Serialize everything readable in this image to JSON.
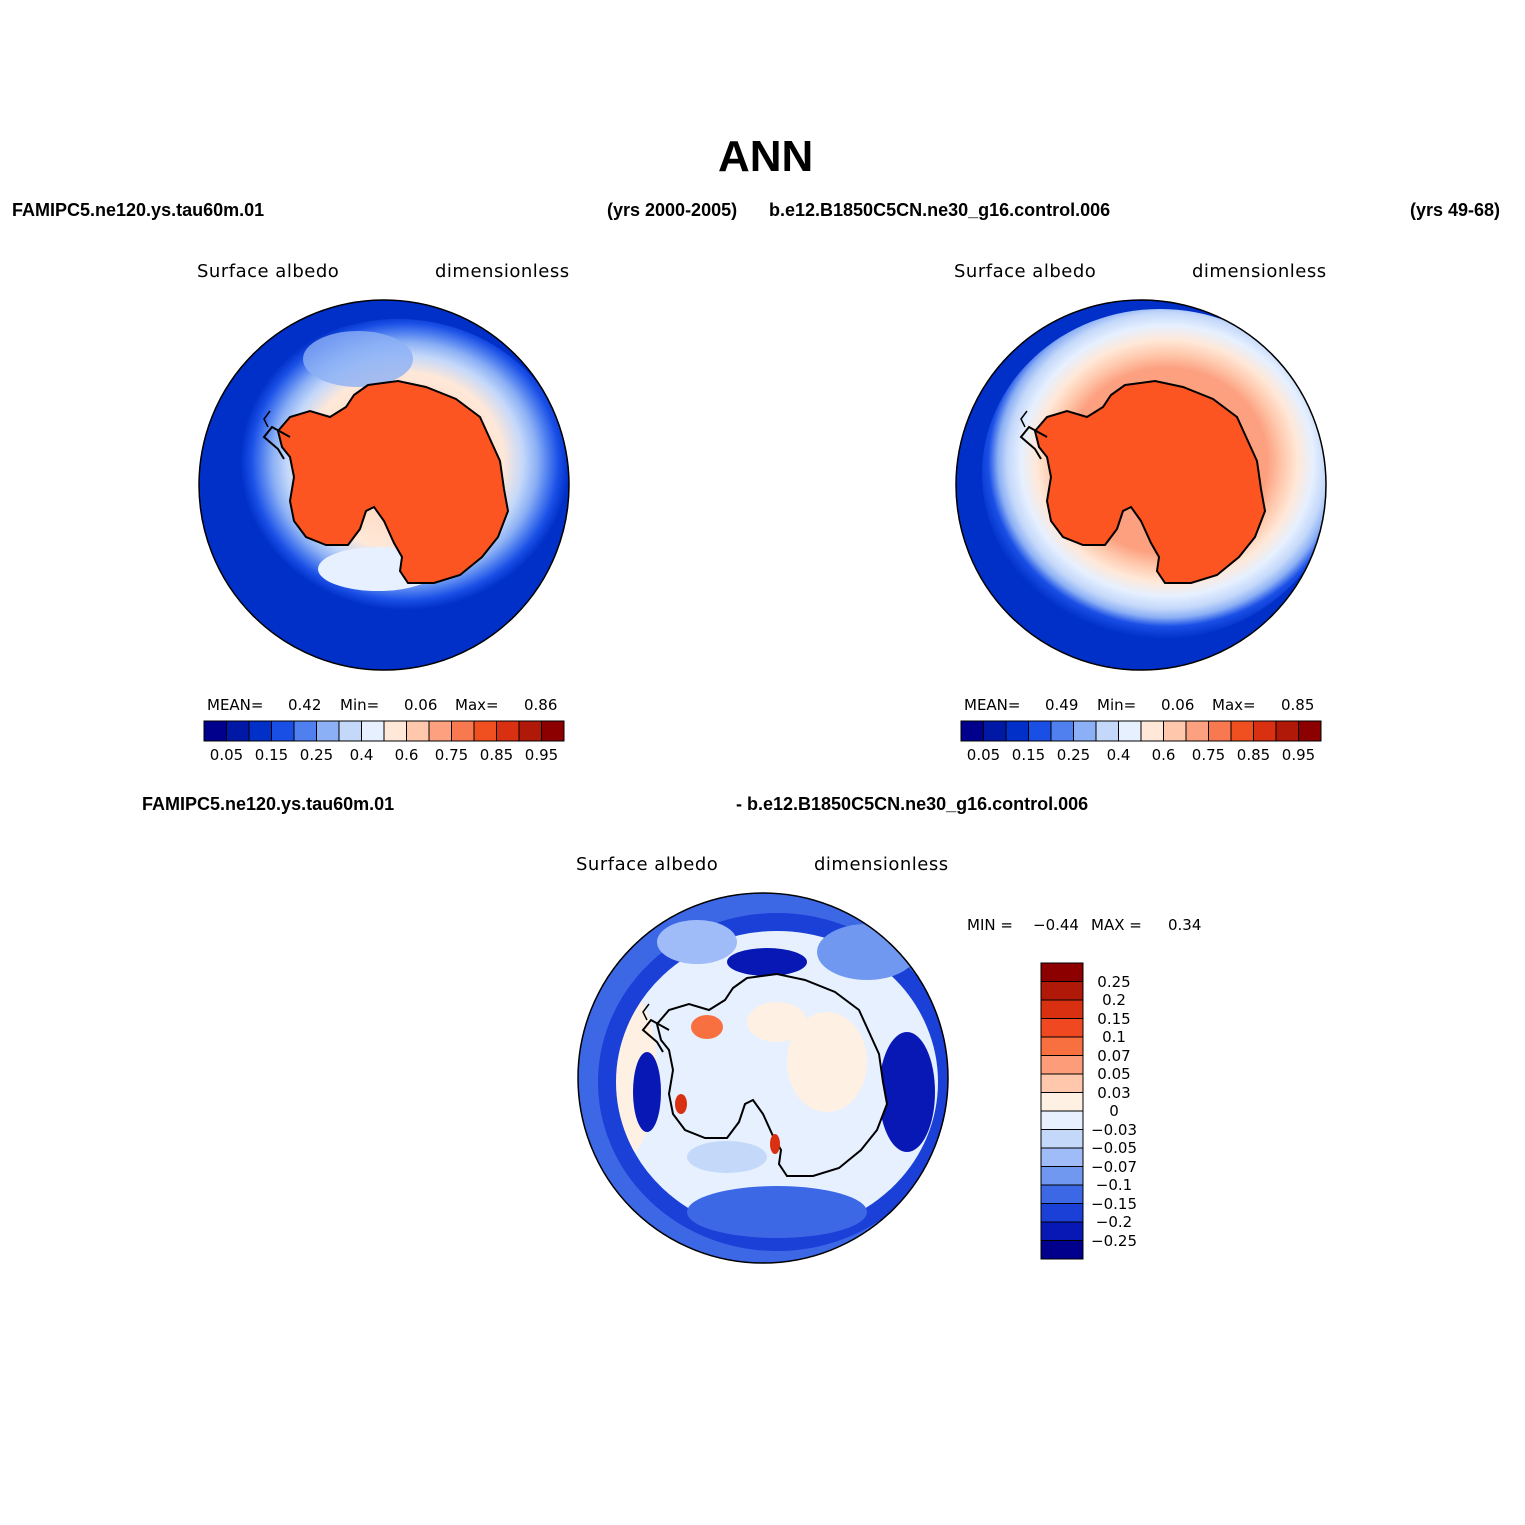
{
  "figure": {
    "title": "ANN"
  },
  "panels": {
    "test": {
      "case": "FAMIPC5.ne120.ys.tau60m.01",
      "years": "(yrs 2000-2005)",
      "variable": "Surface albedo",
      "units": "dimensionless",
      "stats": {
        "mean_label": "MEAN=",
        "mean": "0.42",
        "min_label": "Min=",
        "min": "0.06",
        "max_label": "Max=",
        "max": "0.86"
      }
    },
    "control": {
      "case": "b.e12.B1850C5CN.ne30_g16.control.006",
      "years": "(yrs 49-68)",
      "variable": "Surface albedo",
      "units": "dimensionless",
      "stats": {
        "mean_label": "MEAN=",
        "mean": "0.49",
        "min_label": "Min=",
        "min": "0.06",
        "max_label": "Max=",
        "max": "0.85"
      }
    },
    "diff": {
      "case_left": "FAMIPC5.ne120.ys.tau60m.01",
      "case_right": "- b.e12.B1850C5CN.ne30_g16.control.006",
      "variable": "Surface albedo",
      "units": "dimensionless",
      "stats": {
        "min_label": "MIN =",
        "min": "−0.44",
        "max_label": "MAX =",
        "max": "0.34"
      }
    }
  },
  "colorbars": {
    "abs": {
      "colors": [
        "#00008c",
        "#0018a6",
        "#0030c8",
        "#1a4fe6",
        "#5080f0",
        "#8cb0f5",
        "#c4d8fa",
        "#e6f0ff",
        "#ffe8d8",
        "#ffc8ac",
        "#fca080",
        "#f87850",
        "#f05020",
        "#d83010",
        "#b01808",
        "#8c0000"
      ],
      "tick_labels": [
        "0.05",
        "0.15",
        "0.25",
        "0.4",
        "0.6",
        "0.75",
        "0.85",
        "0.95"
      ]
    },
    "diff": {
      "colors_top_to_bottom": [
        "#8c0000",
        "#b01808",
        "#d83010",
        "#f04820",
        "#f87040",
        "#fc9c78",
        "#ffc8ac",
        "#fff0e4",
        "#e6f0ff",
        "#c4d8fa",
        "#a0bcf8",
        "#7098f0",
        "#3c68e6",
        "#1a40d8",
        "#0818b4",
        "#00008c"
      ],
      "tick_labels": [
        "0.25",
        "0.2",
        "0.15",
        "0.1",
        "0.07",
        "0.05",
        "0.03",
        "0",
        "−0.03",
        "−0.05",
        "−0.07",
        "−0.1",
        "−0.15",
        "−0.2",
        "−0.25"
      ]
    }
  }
}
